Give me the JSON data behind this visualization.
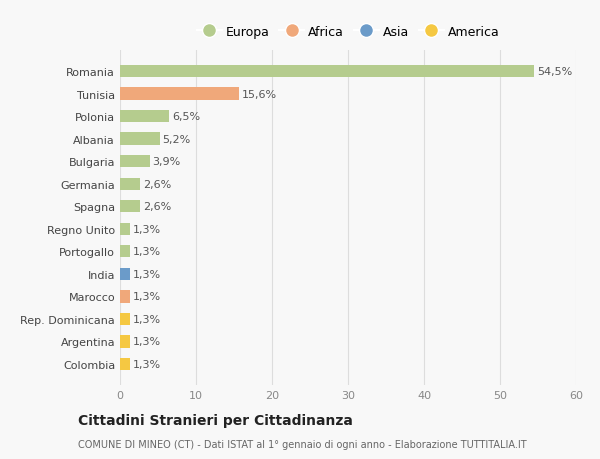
{
  "countries": [
    "Romania",
    "Tunisia",
    "Polonia",
    "Albania",
    "Bulgaria",
    "Germania",
    "Spagna",
    "Regno Unito",
    "Portogallo",
    "India",
    "Marocco",
    "Rep. Dominicana",
    "Argentina",
    "Colombia"
  ],
  "values": [
    54.5,
    15.6,
    6.5,
    5.2,
    3.9,
    2.6,
    2.6,
    1.3,
    1.3,
    1.3,
    1.3,
    1.3,
    1.3,
    1.3
  ],
  "labels": [
    "54,5%",
    "15,6%",
    "6,5%",
    "5,2%",
    "3,9%",
    "2,6%",
    "2,6%",
    "1,3%",
    "1,3%",
    "1,3%",
    "1,3%",
    "1,3%",
    "1,3%",
    "1,3%"
  ],
  "continents": [
    "Europa",
    "Africa",
    "Europa",
    "Europa",
    "Europa",
    "Europa",
    "Europa",
    "Europa",
    "Europa",
    "Asia",
    "Africa",
    "America",
    "America",
    "America"
  ],
  "colors": {
    "Europa": "#b5cc8e",
    "Africa": "#f0a87a",
    "Asia": "#6b9bc9",
    "America": "#f5c842"
  },
  "legend_order": [
    "Europa",
    "Africa",
    "Asia",
    "America"
  ],
  "legend_marker_colors": {
    "Europa": "#b5cc8e",
    "Africa": "#f0a87a",
    "Asia": "#6b9bc9",
    "America": "#f5c842"
  },
  "xlim": [
    0,
    60
  ],
  "xticks": [
    0,
    10,
    20,
    30,
    40,
    50,
    60
  ],
  "title": "Cittadini Stranieri per Cittadinanza",
  "subtitle": "COMUNE DI MINEO (CT) - Dati ISTAT al 1° gennaio di ogni anno - Elaborazione TUTTITALIA.IT",
  "background_color": "#f8f8f8",
  "grid_color": "#dddddd",
  "bar_height": 0.55,
  "label_fontsize": 8,
  "tick_fontsize": 8,
  "legend_fontsize": 9,
  "title_fontsize": 10,
  "subtitle_fontsize": 7
}
